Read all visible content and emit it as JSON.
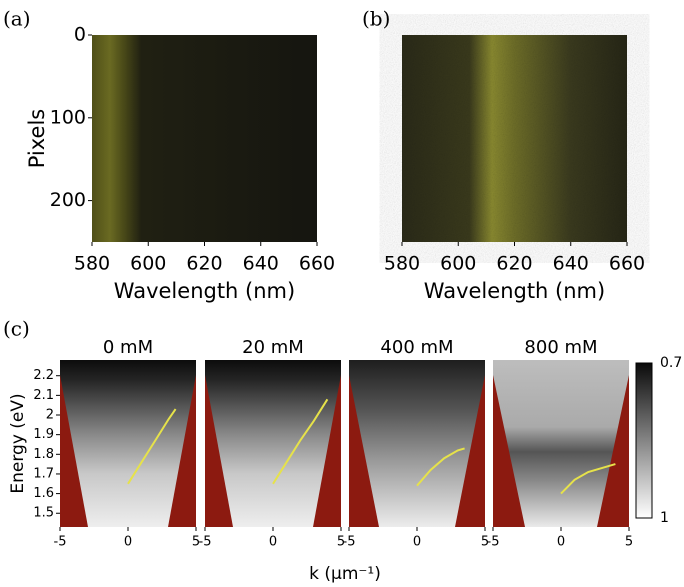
{
  "chart_data": [
    {
      "type": "image",
      "panel_label": "(a)",
      "xlabel": "Wavelength (nm)",
      "ylabel": "Pixels",
      "xlim": [
        580,
        660
      ],
      "xticks": [
        580,
        600,
        620,
        640,
        660
      ],
      "ylim": [
        0,
        250
      ],
      "yticks": [
        0,
        100,
        200
      ]
    },
    {
      "type": "image",
      "panel_label": "(b)",
      "xlabel": "Wavelength (nm)",
      "xlim": [
        580,
        660
      ],
      "xticks": [
        580,
        600,
        620,
        640,
        660
      ],
      "ylim": [
        0,
        250
      ]
    },
    {
      "type": "image",
      "panel_label": "(c)",
      "title": "0 mM",
      "ylabel": "Energy (eV)",
      "xlabel": "k (μm⁻¹)",
      "xlim": [
        -5,
        5
      ],
      "xticks": [
        -5,
        0,
        5
      ],
      "ylim": [
        1.43,
        2.28
      ],
      "yticks": [
        1.5,
        1.6,
        1.7,
        1.8,
        1.9,
        2,
        2.1,
        2.2
      ],
      "series": [
        {
          "color": "#e6e24a",
          "x": [
            0,
            1,
            2,
            3,
            3.5
          ],
          "y": [
            1.65,
            1.76,
            1.87,
            1.98,
            2.03
          ]
        }
      ]
    },
    {
      "type": "image",
      "title": "20 mM",
      "xlim": [
        -5,
        5
      ],
      "xticks": [
        -5,
        0,
        5
      ],
      "ylim": [
        1.43,
        2.28
      ],
      "series": [
        {
          "color": "#e6e24a",
          "x": [
            0,
            1,
            2,
            3,
            4
          ],
          "y": [
            1.65,
            1.76,
            1.87,
            1.97,
            2.08
          ]
        }
      ]
    },
    {
      "type": "image",
      "title": "400 mM",
      "xlim": [
        -5,
        5
      ],
      "xticks": [
        -5,
        0,
        5
      ],
      "ylim": [
        1.43,
        2.28
      ],
      "series": [
        {
          "color": "#e6e24a",
          "x": [
            0,
            1,
            2,
            3,
            3.5
          ],
          "y": [
            1.64,
            1.72,
            1.78,
            1.82,
            1.83
          ]
        }
      ]
    },
    {
      "type": "image",
      "title": "800 mM",
      "xlim": [
        -5,
        5
      ],
      "xticks": [
        -5,
        0,
        5
      ],
      "ylim": [
        1.43,
        2.28
      ],
      "series": [
        {
          "color": "#e6e24a",
          "x": [
            0,
            1,
            2,
            3,
            4
          ],
          "y": [
            1.6,
            1.67,
            1.71,
            1.73,
            1.75
          ]
        }
      ]
    },
    {
      "type": "colorbar",
      "ylim": [
        0.7,
        1
      ],
      "yticks": [
        0.7,
        1
      ]
    }
  ]
}
